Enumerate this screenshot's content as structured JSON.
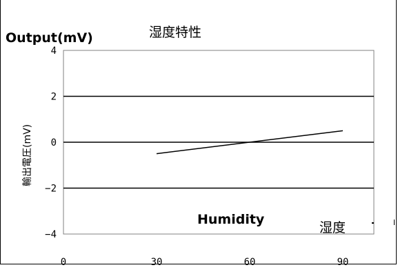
{
  "chart_data": {
    "type": "line",
    "title": "湿度特性",
    "ylabel": "輸出電圧(mV)",
    "xlabel": "湿度",
    "annotation_ylabel_en": "Output(mV)",
    "annotation_xlabel_en": "Humidity",
    "xlim": [
      0,
      100
    ],
    "ylim": [
      -4,
      4
    ],
    "x_ticks": [
      "0",
      "30",
      "60",
      "90"
    ],
    "y_ticks": [
      "4",
      "2",
      "0",
      "−2",
      "−4"
    ],
    "grid": "horizontal",
    "series": [
      {
        "x": [
          30,
          90
        ],
        "y": [
          -0.5,
          0.5
        ]
      }
    ],
    "colors": {
      "line": "#000000",
      "grid": "#000000",
      "plot_border": "#808080"
    }
  }
}
